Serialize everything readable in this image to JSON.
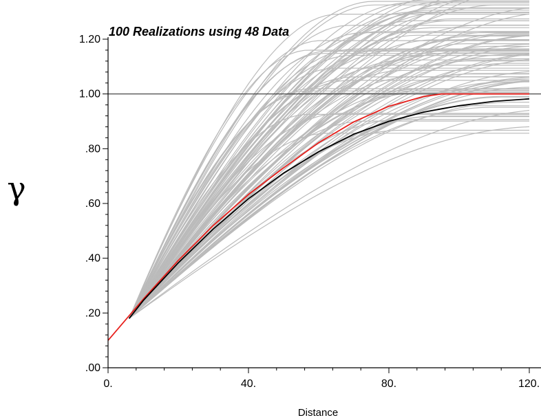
{
  "chart_data": {
    "type": "line",
    "title": "100 Realizations using 48 Data",
    "xlabel": "Distance",
    "ylabel": "γ",
    "xlim": [
      0,
      120
    ],
    "ylim": [
      0,
      1.2
    ],
    "xticks": [
      0,
      40,
      80,
      120
    ],
    "xtick_labels": [
      "0.",
      "40.",
      "80.",
      "120."
    ],
    "yticks": [
      0,
      0.2,
      0.4,
      0.6,
      0.8,
      1.0,
      1.2
    ],
    "ytick_labels": [
      ".00",
      ".20",
      ".40",
      ".60",
      ".80",
      "1.00",
      "1.20"
    ],
    "sill": 1.0,
    "grid": false,
    "colors": {
      "realizations": "#bbbbbb",
      "model": "#e8201c",
      "mean": "#000000",
      "sill": "#000000"
    },
    "realizations": {
      "count": 100,
      "x_range": [
        6,
        120
      ],
      "y_at_6": 0.18,
      "sill_range_at_120": [
        0.75,
        1.32
      ],
      "range_parameter_range": [
        55,
        130
      ]
    },
    "series": [
      {
        "role": "model",
        "x": [
          0,
          5,
          10,
          20,
          30,
          40,
          50,
          60,
          70,
          80,
          90,
          95,
          100,
          110,
          120
        ],
        "y": [
          0.1,
          0.175,
          0.25,
          0.392,
          0.52,
          0.633,
          0.73,
          0.822,
          0.898,
          0.955,
          0.991,
          1.0,
          1.0,
          1.0,
          1.0
        ]
      },
      {
        "role": "mean",
        "x": [
          6,
          10,
          20,
          30,
          40,
          50,
          60,
          70,
          80,
          90,
          100,
          110,
          120
        ],
        "y": [
          0.18,
          0.245,
          0.383,
          0.507,
          0.617,
          0.711,
          0.789,
          0.853,
          0.9,
          0.934,
          0.957,
          0.973,
          0.982
        ]
      }
    ]
  }
}
